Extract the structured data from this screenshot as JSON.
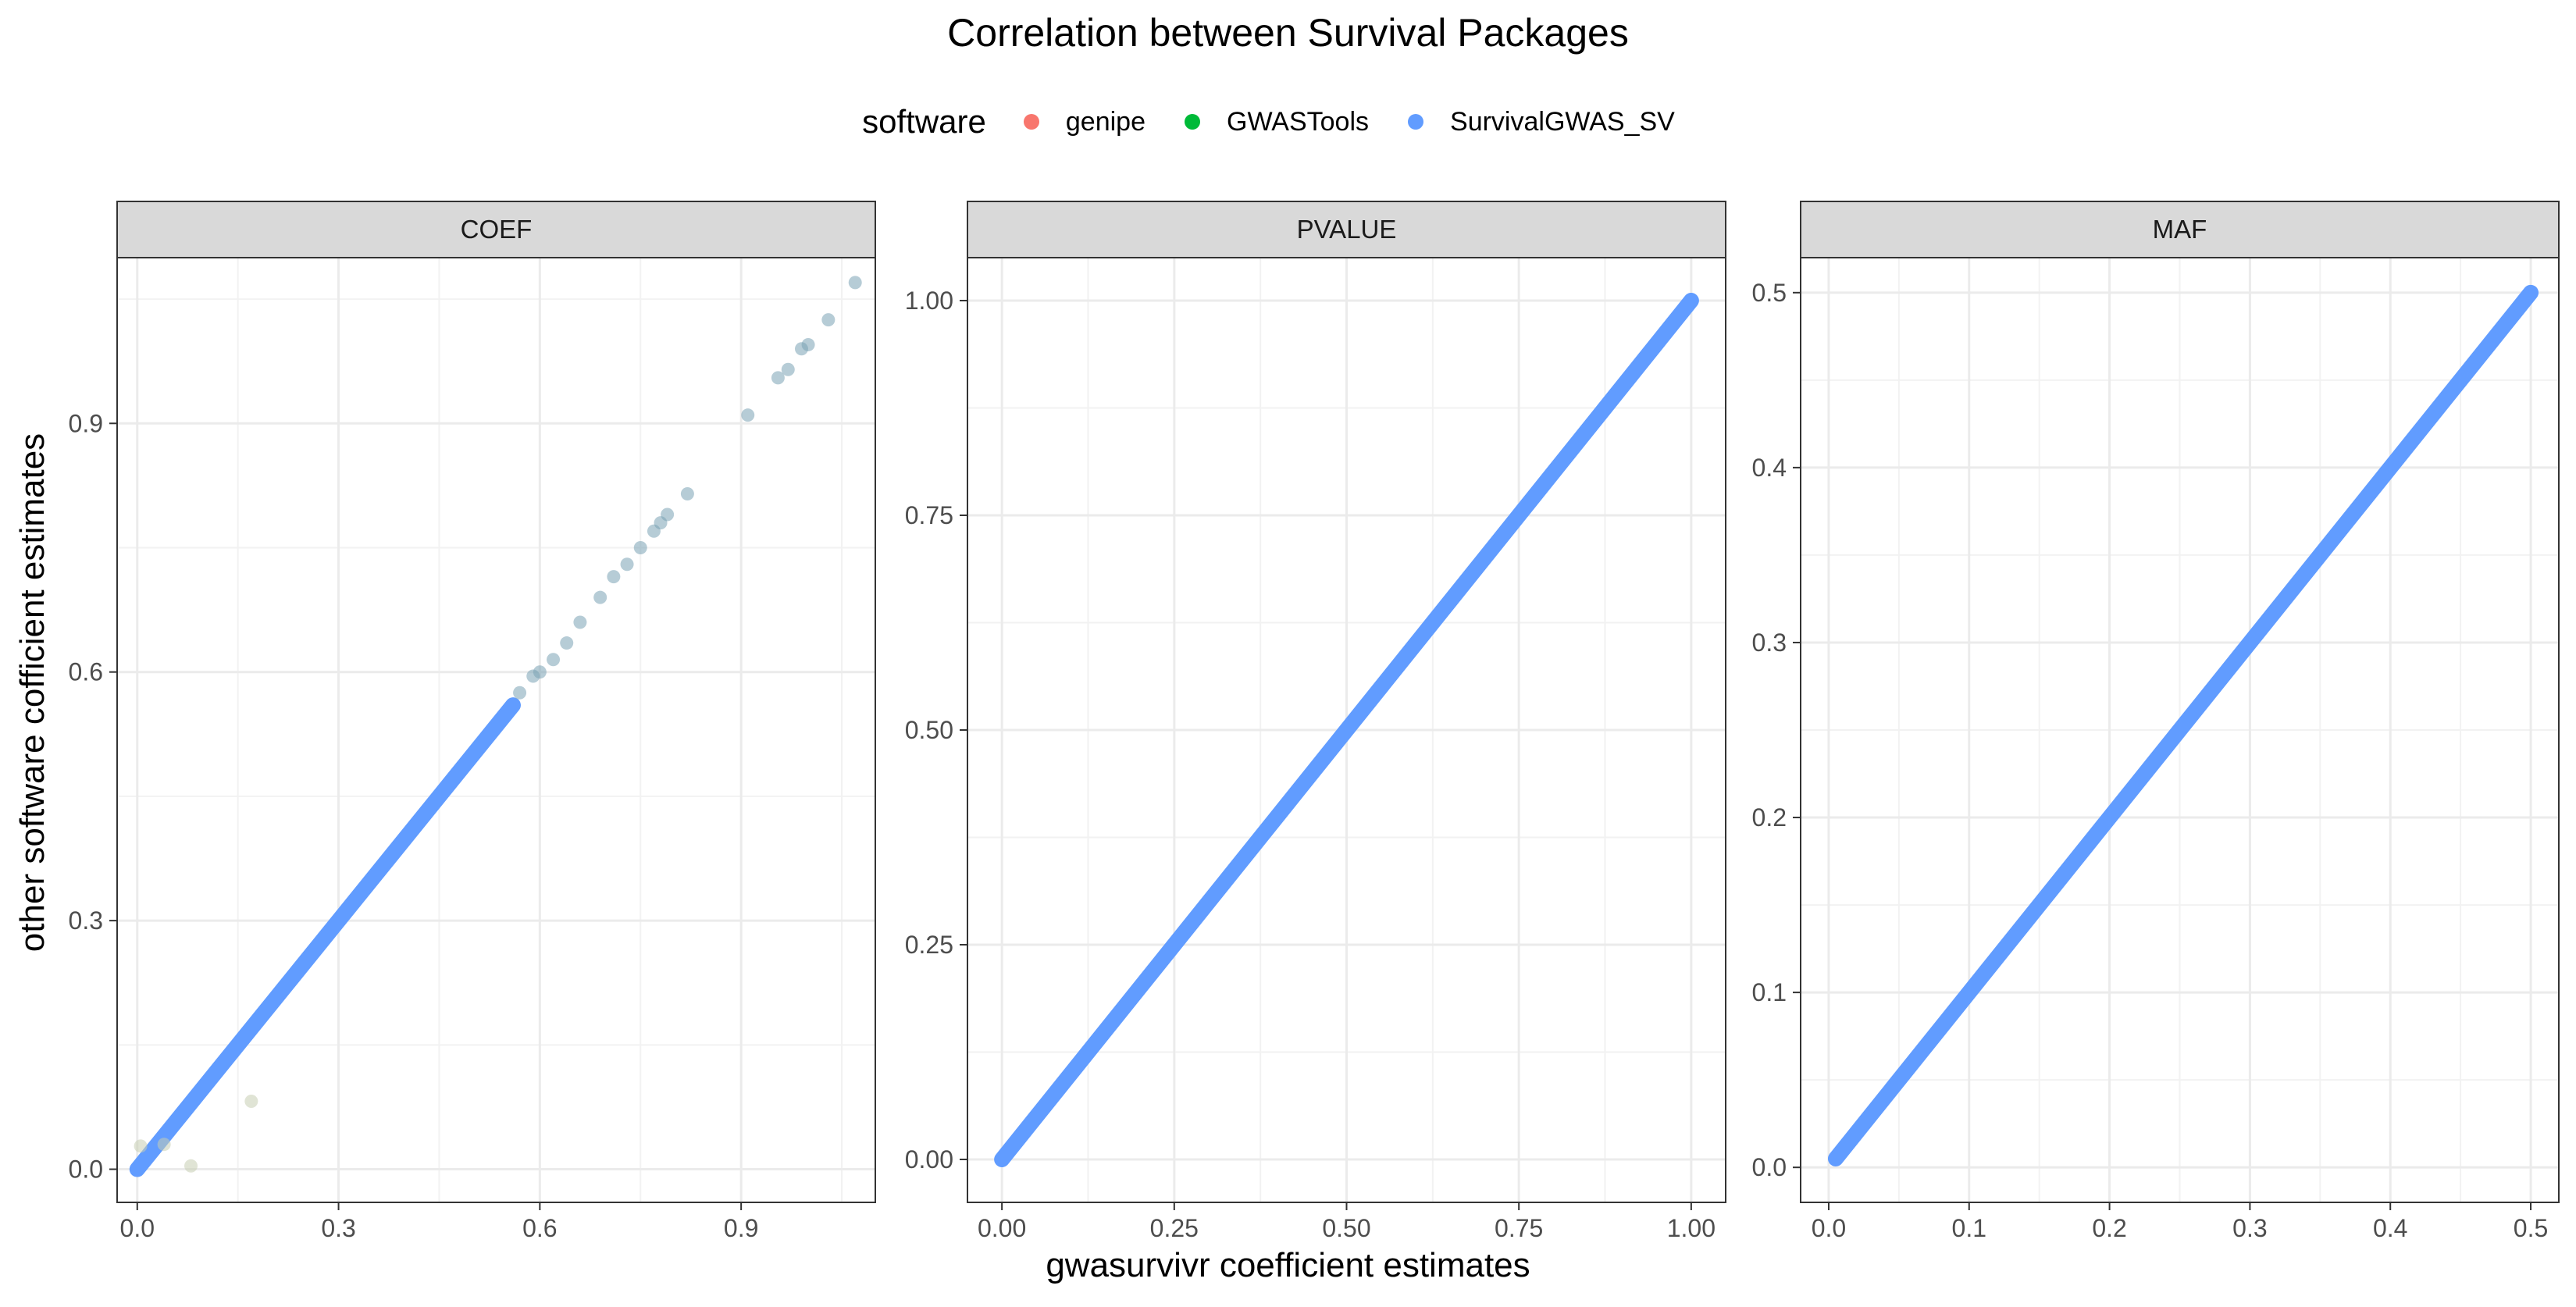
{
  "chart": {
    "title": "Correlation between Survival Packages",
    "xlabel": "gwasurvivr coefficient estimates",
    "ylabel": "other software cofficient estimates",
    "legend": {
      "title": "software",
      "items": [
        {
          "label": "genipe",
          "color": "#F8766D"
        },
        {
          "label": "GWASTools",
          "color": "#00BA38"
        },
        {
          "label": "SurvivalGWAS_SV",
          "color": "#619CFF"
        }
      ]
    }
  },
  "chart_data": [
    {
      "type": "scatter",
      "facet": "COEF",
      "xlim": [
        -0.03,
        1.1
      ],
      "ylim": [
        -0.04,
        1.1
      ],
      "x_ticks": [
        0.0,
        0.3,
        0.6,
        0.9
      ],
      "y_ticks": [
        0.0,
        0.3,
        0.6,
        0.9
      ],
      "x_tick_labels": [
        "0.0",
        "0.3",
        "0.6",
        "0.9"
      ],
      "y_tick_labels": [
        "0.0",
        "0.3",
        "0.6",
        "0.9"
      ],
      "grid": true,
      "dense_line": {
        "x_from": 0.0,
        "x_to": 0.56,
        "slope": 1,
        "intercept": 0
      },
      "points": [
        [
          0.005,
          0.028
        ],
        [
          0.04,
          0.03
        ],
        [
          0.08,
          0.004
        ],
        [
          0.17,
          0.082
        ],
        [
          0.57,
          0.575
        ],
        [
          0.59,
          0.595
        ],
        [
          0.6,
          0.6
        ],
        [
          0.62,
          0.615
        ],
        [
          0.64,
          0.635
        ],
        [
          0.66,
          0.66
        ],
        [
          0.69,
          0.69
        ],
        [
          0.71,
          0.715
        ],
        [
          0.73,
          0.73
        ],
        [
          0.75,
          0.75
        ],
        [
          0.77,
          0.77
        ],
        [
          0.78,
          0.78
        ],
        [
          0.79,
          0.79
        ],
        [
          0.82,
          0.815
        ],
        [
          0.91,
          0.91
        ],
        [
          0.955,
          0.955
        ],
        [
          0.97,
          0.965
        ],
        [
          0.99,
          0.99
        ],
        [
          1.0,
          0.995
        ],
        [
          1.03,
          1.025
        ],
        [
          1.07,
          1.07
        ]
      ]
    },
    {
      "type": "scatter",
      "facet": "PVALUE",
      "xlim": [
        -0.05,
        1.05
      ],
      "ylim": [
        -0.05,
        1.05
      ],
      "x_ticks": [
        0.0,
        0.25,
        0.5,
        0.75,
        1.0
      ],
      "y_ticks": [
        0.0,
        0.25,
        0.5,
        0.75,
        1.0
      ],
      "x_tick_labels": [
        "0.00",
        "0.25",
        "0.50",
        "0.75",
        "1.00"
      ],
      "y_tick_labels": [
        "0.00",
        "0.25",
        "0.50",
        "0.75",
        "1.00"
      ],
      "grid": true,
      "dense_line": {
        "x_from": 0.0,
        "x_to": 1.0,
        "slope": 1,
        "intercept": 0
      },
      "points": []
    },
    {
      "type": "scatter",
      "facet": "MAF",
      "xlim": [
        -0.02,
        0.52
      ],
      "ylim": [
        -0.02,
        0.52
      ],
      "x_ticks": [
        0.0,
        0.1,
        0.2,
        0.3,
        0.4,
        0.5
      ],
      "y_ticks": [
        0.0,
        0.1,
        0.2,
        0.3,
        0.4,
        0.5
      ],
      "x_tick_labels": [
        "0.0",
        "0.1",
        "0.2",
        "0.3",
        "0.4",
        "0.5"
      ],
      "y_tick_labels": [
        "0.0",
        "0.1",
        "0.2",
        "0.3",
        "0.4",
        "0.5"
      ],
      "grid": true,
      "dense_line": {
        "x_from": 0.005,
        "x_to": 0.5,
        "slope": 1,
        "intercept": 0
      },
      "points": []
    }
  ]
}
